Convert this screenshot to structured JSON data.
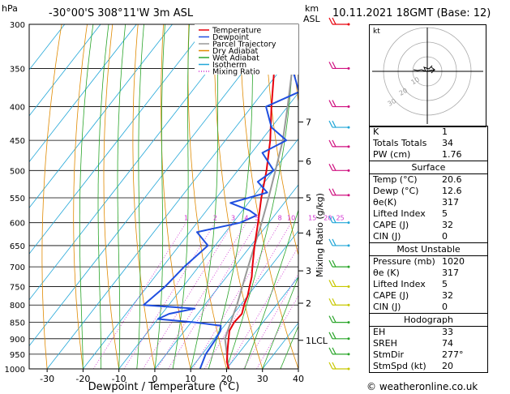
{
  "header": {
    "hpa": "hPa",
    "location": "-30°00'S  308°11'W  3m  ASL",
    "km": "km",
    "asl": "ASL",
    "datetime": "10.11.2021  18GMT  (Base: 12)"
  },
  "chart_data": {
    "type": "skew-t",
    "xlabel": "Dewpoint / Temperature (°C)",
    "ylabel": "hPa",
    "xlim": [
      -35,
      40
    ],
    "x_ticks": [
      "-30",
      "-20",
      "-10",
      "0",
      "10",
      "20",
      "30",
      "40"
    ],
    "pressure_ticks": [
      "300",
      "350",
      "400",
      "450",
      "500",
      "550",
      "600",
      "650",
      "700",
      "750",
      "800",
      "850",
      "900",
      "950",
      "1000"
    ],
    "km_ticks": [
      {
        "p": 422,
        "label": "7"
      },
      {
        "p": 484,
        "label": "6"
      },
      {
        "p": 550,
        "label": "5"
      },
      {
        "p": 622,
        "label": "4"
      },
      {
        "p": 710,
        "label": "3"
      },
      {
        "p": 795,
        "label": "2"
      },
      {
        "p": 905,
        "label": "1LCL"
      }
    ],
    "mixing_ratio_label": "Mixing Ratio (g/kg)",
    "mixing_ratio_values": [
      "1",
      "2",
      "3",
      "4",
      "5",
      "8",
      "10",
      "15",
      "20",
      "25"
    ],
    "legend": [
      {
        "name": "Temperature",
        "color": "#e8000b"
      },
      {
        "name": "Dewpoint",
        "color": "#1f4fe0"
      },
      {
        "name": "Parcel Trajectory",
        "color": "#999999"
      },
      {
        "name": "Dry Adiabat",
        "color": "#e08a00"
      },
      {
        "name": "Wet Adiabat",
        "color": "#2aa52a"
      },
      {
        "name": "Isotherm",
        "color": "#22a7d8"
      },
      {
        "name": "Mixing Ratio",
        "color": "#d02fd0"
      }
    ],
    "temperature": [
      [
        1000,
        20.6
      ],
      [
        975,
        18.5
      ],
      [
        950,
        17
      ],
      [
        925,
        15.5
      ],
      [
        900,
        14
      ],
      [
        875,
        12.5
      ],
      [
        850,
        12
      ],
      [
        825,
        12.3
      ],
      [
        800,
        11
      ],
      [
        775,
        10
      ],
      [
        750,
        8.5
      ],
      [
        725,
        7
      ],
      [
        700,
        5
      ],
      [
        650,
        1
      ],
      [
        600,
        -3
      ],
      [
        550,
        -7.5
      ],
      [
        500,
        -12
      ],
      [
        450,
        -17.5
      ],
      [
        400,
        -24.5
      ],
      [
        350,
        -32
      ],
      [
        300,
        -41
      ]
    ],
    "dewpoint": [
      [
        1000,
        12.6
      ],
      [
        950,
        11
      ],
      [
        900,
        10.5
      ],
      [
        875,
        10
      ],
      [
        860,
        9
      ],
      [
        850,
        1
      ],
      [
        840,
        -10
      ],
      [
        825,
        -8
      ],
      [
        810,
        -2
      ],
      [
        800,
        -17
      ],
      [
        750,
        -15
      ],
      [
        700,
        -14
      ],
      [
        650,
        -12
      ],
      [
        620,
        -18
      ],
      [
        600,
        -8
      ],
      [
        585,
        -5
      ],
      [
        575,
        -8
      ],
      [
        560,
        -15
      ],
      [
        540,
        -7
      ],
      [
        520,
        -12
      ],
      [
        500,
        -10
      ],
      [
        470,
        -17
      ],
      [
        450,
        -13
      ],
      [
        430,
        -20
      ],
      [
        400,
        -26
      ],
      [
        380,
        -20
      ],
      [
        350,
        -27
      ],
      [
        320,
        -33
      ],
      [
        300,
        -40
      ]
    ],
    "parcel": [
      [
        1000,
        20.6
      ],
      [
        900,
        13
      ],
      [
        850,
        11
      ],
      [
        800,
        9
      ],
      [
        750,
        6.5
      ],
      [
        700,
        3.8
      ],
      [
        650,
        1
      ],
      [
        600,
        -2
      ],
      [
        550,
        -5.5
      ],
      [
        500,
        -9.5
      ],
      [
        450,
        -14
      ],
      [
        400,
        -20
      ],
      [
        350,
        -27
      ],
      [
        300,
        -36
      ]
    ],
    "wind_barbs": [
      {
        "p": 300,
        "color": "#e8000b"
      },
      {
        "p": 350,
        "color": "#d01080"
      },
      {
        "p": 400,
        "color": "#d01080"
      },
      {
        "p": 430,
        "color": "#22a7d8"
      },
      {
        "p": 460,
        "color": "#d01080"
      },
      {
        "p": 500,
        "color": "#d01080"
      },
      {
        "p": 545,
        "color": "#d01080"
      },
      {
        "p": 600,
        "color": "#22a7d8"
      },
      {
        "p": 650,
        "color": "#22a7d8"
      },
      {
        "p": 700,
        "color": "#2aa52a"
      },
      {
        "p": 750,
        "color": "#c8c800"
      },
      {
        "p": 800,
        "color": "#c8c800"
      },
      {
        "p": 850,
        "color": "#2aa52a"
      },
      {
        "p": 900,
        "color": "#2aa52a"
      },
      {
        "p": 950,
        "color": "#2aa52a"
      },
      {
        "p": 1000,
        "color": "#c8c800"
      }
    ]
  },
  "hodograph": {
    "label": "kt",
    "ring_labels": [
      "10",
      "20",
      "30"
    ]
  },
  "indices": {
    "top": [
      {
        "label": "K",
        "value": "1"
      },
      {
        "label": "Totals Totals",
        "value": "34"
      },
      {
        "label": "PW (cm)",
        "value": "1.76"
      }
    ],
    "surface_title": "Surface",
    "surface": [
      {
        "label": "Temp (°C)",
        "value": "20.6"
      },
      {
        "label": "Dewp (°C)",
        "value": "12.6"
      },
      {
        "label": "θe(K)",
        "value": "317"
      },
      {
        "label": "Lifted Index",
        "value": "5"
      },
      {
        "label": "CAPE (J)",
        "value": "32"
      },
      {
        "label": "CIN (J)",
        "value": "0"
      }
    ],
    "mu_title": "Most Unstable",
    "mu": [
      {
        "label": "Pressure (mb)",
        "value": "1020"
      },
      {
        "label": "θe (K)",
        "value": "317"
      },
      {
        "label": "Lifted Index",
        "value": "5"
      },
      {
        "label": "CAPE (J)",
        "value": "32"
      },
      {
        "label": "CIN (J)",
        "value": "0"
      }
    ],
    "hodo_title": "Hodograph",
    "hodo": [
      {
        "label": "EH",
        "value": "33"
      },
      {
        "label": "SREH",
        "value": "74"
      },
      {
        "label": "StmDir",
        "value": "277°"
      },
      {
        "label": "StmSpd (kt)",
        "value": "20"
      }
    ]
  },
  "footer": "© weatheronline.co.uk"
}
